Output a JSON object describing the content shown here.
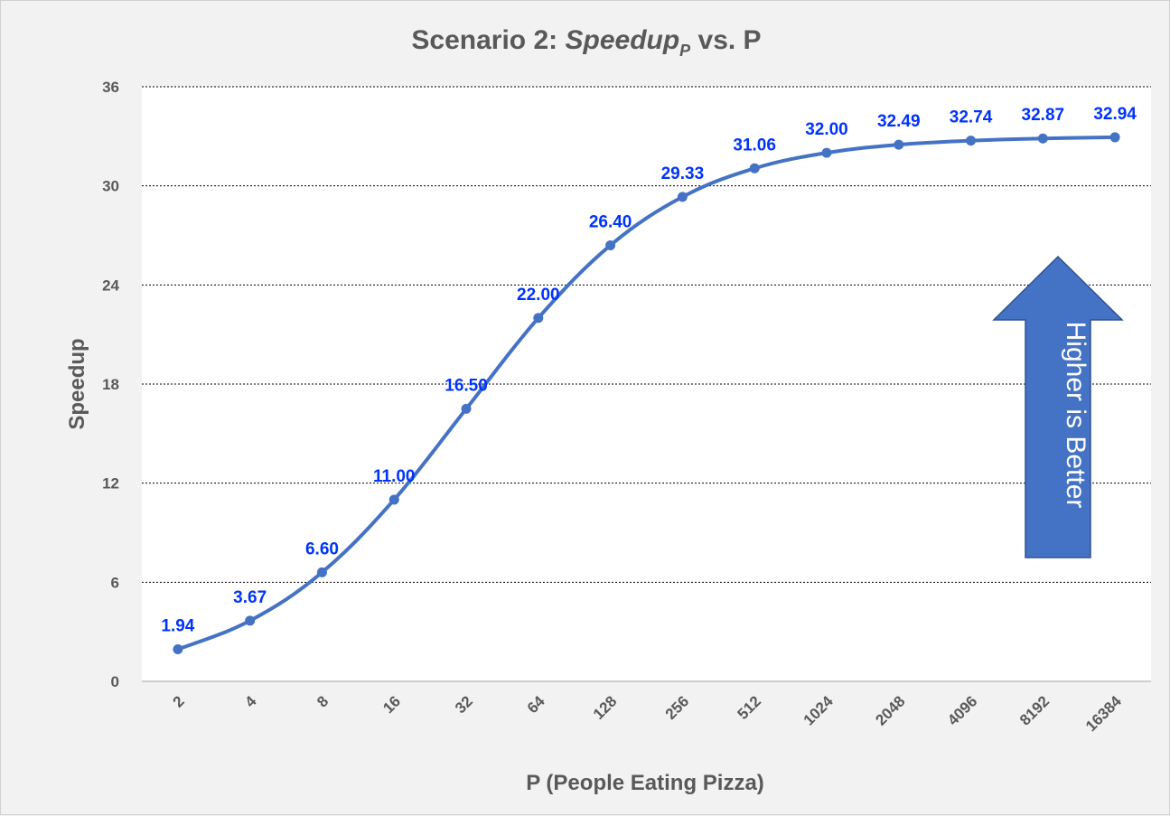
{
  "chart_data": {
    "type": "line",
    "title_main": "Scenario 2: ",
    "title_italic": "Speedup",
    "title_subscript": "P",
    "title_end": " vs. P",
    "xlabel": "P (People Eating Pizza)",
    "ylabel": "Speedup",
    "categories": [
      "2",
      "4",
      "8",
      "16",
      "32",
      "64",
      "128",
      "256",
      "512",
      "1024",
      "2048",
      "4096",
      "8192",
      "16384"
    ],
    "series": [
      {
        "values": [
          1.94,
          3.67,
          6.6,
          11.0,
          16.5,
          22.0,
          26.4,
          29.33,
          31.06,
          32.0,
          32.49,
          32.74,
          32.87,
          32.94
        ],
        "labels": [
          "1.94",
          "3.67",
          "6.60",
          "11.00",
          "16.50",
          "22.00",
          "26.40",
          "29.33",
          "31.06",
          "32.00",
          "32.49",
          "32.74",
          "32.87",
          "32.94"
        ]
      }
    ],
    "ylim": [
      0,
      36
    ],
    "yticks": [
      "0",
      "6",
      "12",
      "18",
      "24",
      "30",
      "36"
    ],
    "grid": true,
    "annotation": "Higher is Better",
    "colors": {
      "line": "#4472c4",
      "data_label": "#0033ff",
      "arrow": "#4472c4",
      "text": "#595959",
      "background": "#f2f2f2",
      "plot_background": "#ffffff"
    }
  }
}
